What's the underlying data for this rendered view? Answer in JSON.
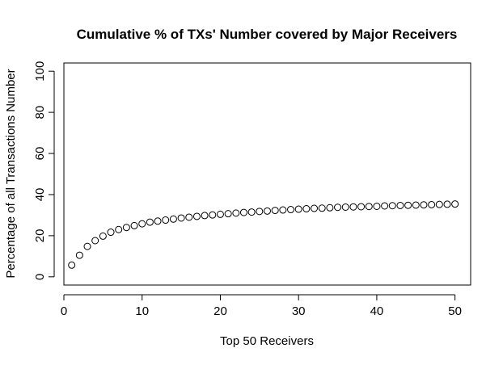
{
  "chart_data": {
    "type": "scatter",
    "title": "Cumulative % of TXs' Number covered by Major Receivers",
    "xlabel": "Top 50 Receivers",
    "ylabel": "Percentage of all Transactions Number",
    "xlim": [
      0,
      52
    ],
    "ylim": [
      -4,
      104
    ],
    "xticks": [
      0,
      10,
      20,
      30,
      40,
      50
    ],
    "yticks": [
      0,
      20,
      40,
      60,
      80,
      100
    ],
    "grid": false,
    "legend": "none",
    "point_style": "open-circle",
    "x": [
      1,
      2,
      3,
      4,
      5,
      6,
      7,
      8,
      9,
      10,
      11,
      12,
      13,
      14,
      15,
      16,
      17,
      18,
      19,
      20,
      21,
      22,
      23,
      24,
      25,
      26,
      27,
      28,
      29,
      30,
      31,
      32,
      33,
      34,
      35,
      36,
      37,
      38,
      39,
      40,
      41,
      42,
      43,
      44,
      45,
      46,
      47,
      48,
      49,
      50
    ],
    "y": [
      5.7,
      10.5,
      14.8,
      17.6,
      19.8,
      21.7,
      23.0,
      24.0,
      24.9,
      25.8,
      26.6,
      27.1,
      27.6,
      28.1,
      28.6,
      29.0,
      29.4,
      29.8,
      30.1,
      30.4,
      30.7,
      31.0,
      31.3,
      31.5,
      31.8,
      32.0,
      32.3,
      32.5,
      32.7,
      32.9,
      33.1,
      33.3,
      33.4,
      33.6,
      33.8,
      33.9,
      34.0,
      34.1,
      34.2,
      34.3,
      34.5,
      34.6,
      34.7,
      34.8,
      34.9,
      35.0,
      35.1,
      35.2,
      35.3,
      35.4
    ]
  }
}
